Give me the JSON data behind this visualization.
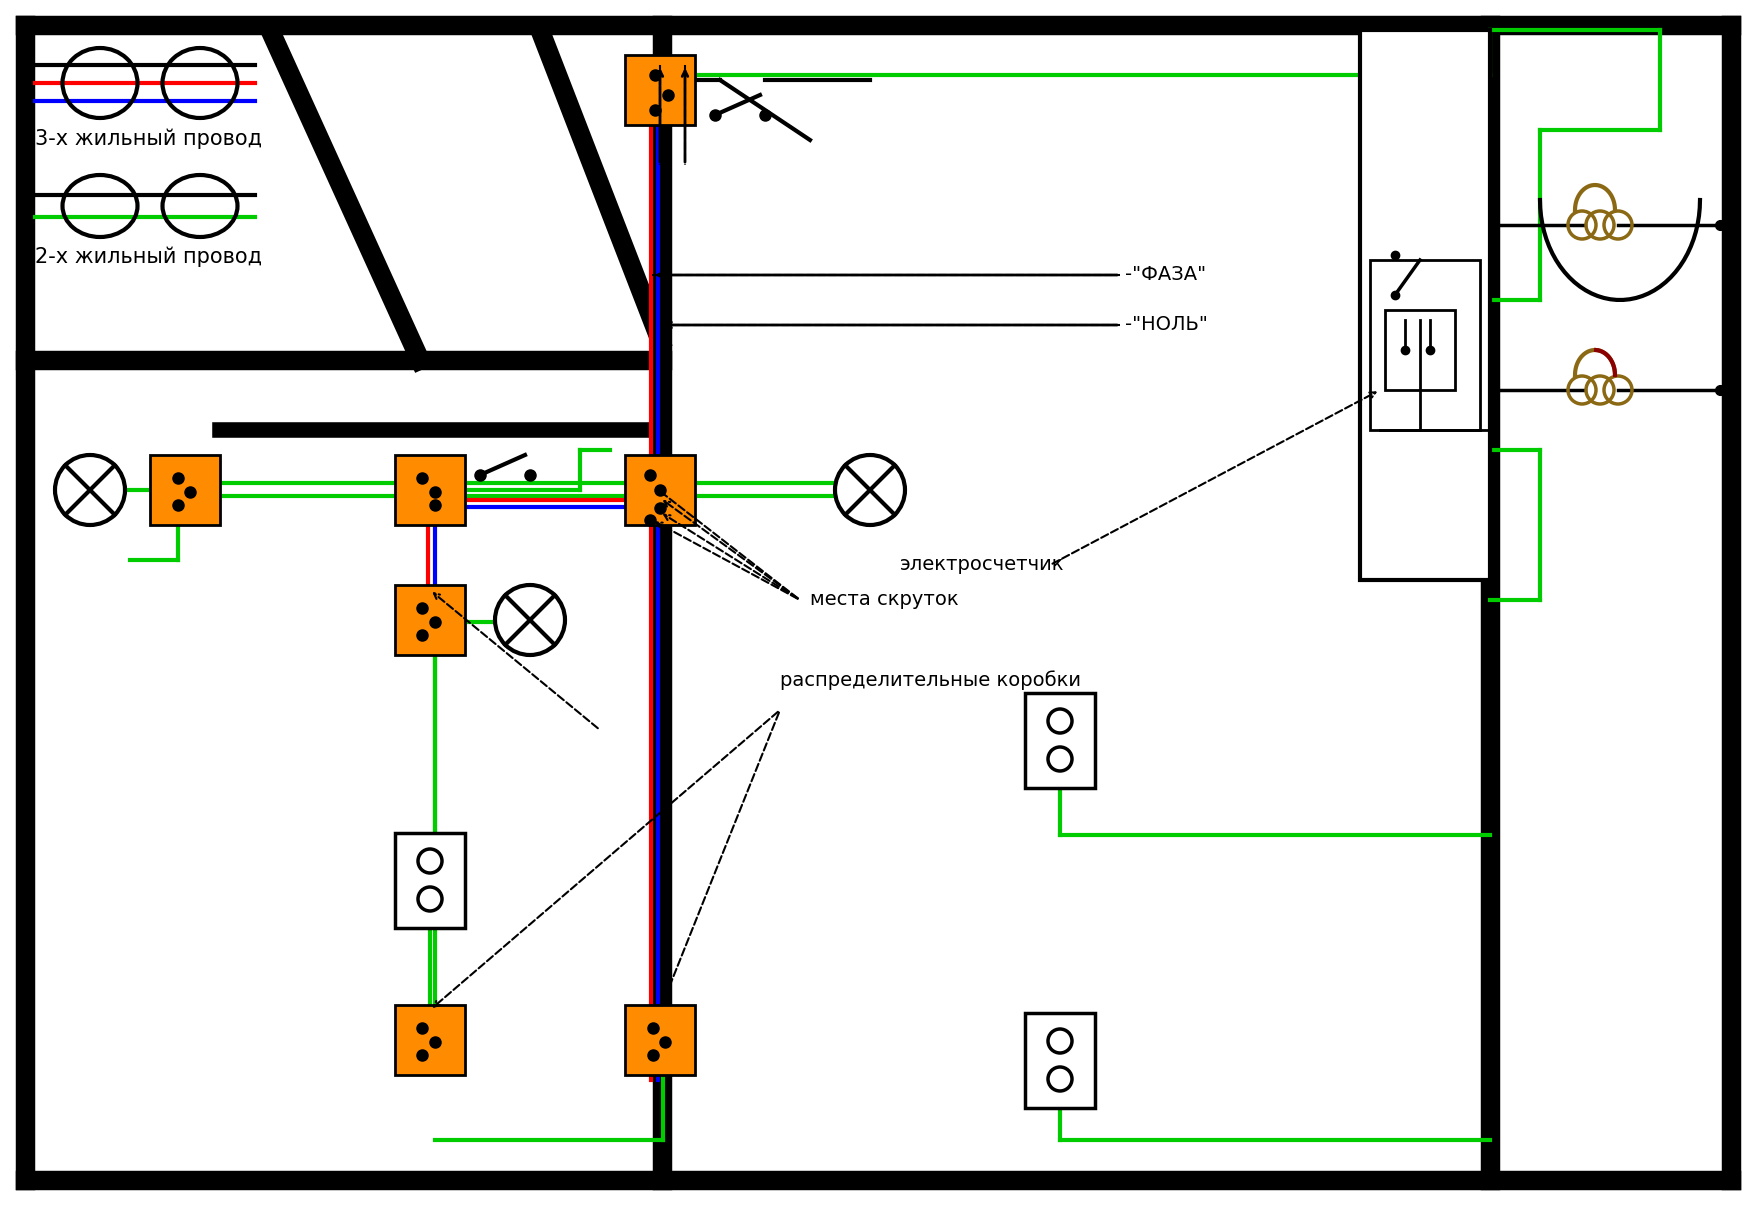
{
  "bg_color": "#ffffff",
  "border_color": "#000000",
  "orange": "#FF8C00",
  "green": "#00CC00",
  "red": "#FF0000",
  "blue": "#0000FF",
  "brown": "#8B6914",
  "dark_red": "#8B0000",
  "label_faza": "-\"ФАЗА\"",
  "label_nol": "-\"НОЛЬ\"",
  "label_schetchik": "электросчетчик",
  "label_skrutok": "места скруток",
  "label_rasp": "распределительные коробки",
  "label_3zhil": "3-х жильный провод",
  "label_2zhil": "2-х жильный провод"
}
